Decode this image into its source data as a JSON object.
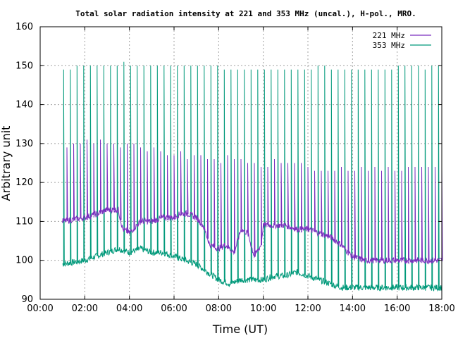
{
  "chart_data": {
    "type": "line",
    "title": "Total solar radiation intensity at 221 and 353 MHz (uncal.), H-pol., MRO.",
    "xlabel": "Time (UT)",
    "ylabel": "Arbitrary unit",
    "xlim": [
      0,
      18
    ],
    "ylim": [
      90,
      160
    ],
    "x_ticks": [
      "00:00",
      "02:00",
      "04:00",
      "06:00",
      "08:00",
      "10:00",
      "12:00",
      "14:00",
      "16:00",
      "18:00"
    ],
    "y_ticks": [
      "90",
      "100",
      "110",
      "120",
      "130",
      "140",
      "150",
      "160"
    ],
    "grid": true,
    "legend_position": "top-right",
    "series": [
      {
        "name": "221 MHz",
        "color": "#7b2fbf",
        "spikes": {
          "start_hour": 1.2,
          "interval_hours": 0.3,
          "peak_heights": [
            129,
            130,
            130,
            131,
            130,
            131,
            130,
            130,
            129,
            130,
            130,
            129,
            128,
            129,
            128,
            127,
            127,
            128,
            126,
            127,
            127,
            126,
            126,
            125,
            127,
            126,
            126,
            125,
            125,
            124,
            124,
            126,
            125,
            125,
            125,
            125,
            124,
            123,
            123,
            123,
            123,
            124,
            123,
            123,
            124,
            123,
            124,
            123,
            124,
            123,
            123,
            124,
            124,
            124,
            124,
            124,
            124,
            124
          ]
        },
        "baseline": [
          [
            1.0,
            110
          ],
          [
            2.0,
            111
          ],
          [
            2.6,
            112
          ],
          [
            3.0,
            113
          ],
          [
            3.5,
            113
          ],
          [
            3.7,
            108
          ],
          [
            4.0,
            107
          ],
          [
            4.5,
            110
          ],
          [
            5.0,
            110
          ],
          [
            5.5,
            111
          ],
          [
            6.0,
            111
          ],
          [
            6.3,
            112
          ],
          [
            6.6,
            112
          ],
          [
            7.0,
            111
          ],
          [
            7.3,
            109
          ],
          [
            7.6,
            104
          ],
          [
            8.0,
            103
          ],
          [
            8.3,
            104
          ],
          [
            8.7,
            102
          ],
          [
            9.0,
            108
          ],
          [
            9.3,
            107
          ],
          [
            9.6,
            101
          ],
          [
            9.9,
            104
          ],
          [
            10.0,
            109
          ],
          [
            10.5,
            109
          ],
          [
            11.0,
            109
          ],
          [
            11.5,
            108
          ],
          [
            12.0,
            108
          ],
          [
            12.5,
            107
          ],
          [
            13.0,
            106
          ],
          [
            13.5,
            104
          ],
          [
            13.8,
            102
          ],
          [
            14.0,
            101
          ],
          [
            14.5,
            100
          ],
          [
            15.0,
            100
          ],
          [
            15.5,
            100
          ],
          [
            16.0,
            100
          ],
          [
            16.5,
            100
          ],
          [
            17.0,
            100
          ],
          [
            17.5,
            100
          ],
          [
            18.0,
            100
          ]
        ]
      },
      {
        "name": "353 MHz",
        "color": "#00997a",
        "spikes": {
          "start_hour": 1.05,
          "interval_hours": 0.3,
          "peak_heights": [
            149,
            149,
            150,
            150,
            150,
            150,
            150,
            150,
            150,
            151,
            150,
            150,
            150,
            150,
            150,
            150,
            150,
            150,
            150,
            150,
            150,
            150,
            150,
            150,
            149,
            149,
            149,
            149,
            149,
            149,
            149,
            149,
            149,
            149,
            149,
            149,
            149,
            149,
            150,
            150,
            149,
            149,
            149,
            149,
            149,
            149,
            149,
            149,
            149,
            149,
            150,
            150,
            150,
            150,
            149,
            150,
            150,
            150
          ]
        },
        "baseline": [
          [
            1.0,
            99
          ],
          [
            2.0,
            100
          ],
          [
            2.5,
            101
          ],
          [
            3.0,
            102
          ],
          [
            3.5,
            103
          ],
          [
            4.0,
            102
          ],
          [
            4.5,
            103
          ],
          [
            5.0,
            102
          ],
          [
            5.5,
            102
          ],
          [
            6.0,
            101
          ],
          [
            6.5,
            100
          ],
          [
            7.0,
            99
          ],
          [
            7.5,
            97
          ],
          [
            8.0,
            95
          ],
          [
            8.5,
            94
          ],
          [
            9.0,
            95
          ],
          [
            9.5,
            95
          ],
          [
            10.0,
            95
          ],
          [
            10.5,
            96
          ],
          [
            11.0,
            96
          ],
          [
            11.5,
            97
          ],
          [
            12.0,
            96
          ],
          [
            12.5,
            95
          ],
          [
            13.0,
            94
          ],
          [
            13.5,
            93
          ],
          [
            14.0,
            93
          ],
          [
            14.5,
            93
          ],
          [
            15.0,
            93
          ],
          [
            15.5,
            93
          ],
          [
            16.0,
            93
          ],
          [
            16.5,
            93
          ],
          [
            17.0,
            93
          ],
          [
            17.5,
            93
          ],
          [
            18.0,
            93
          ]
        ]
      }
    ]
  }
}
